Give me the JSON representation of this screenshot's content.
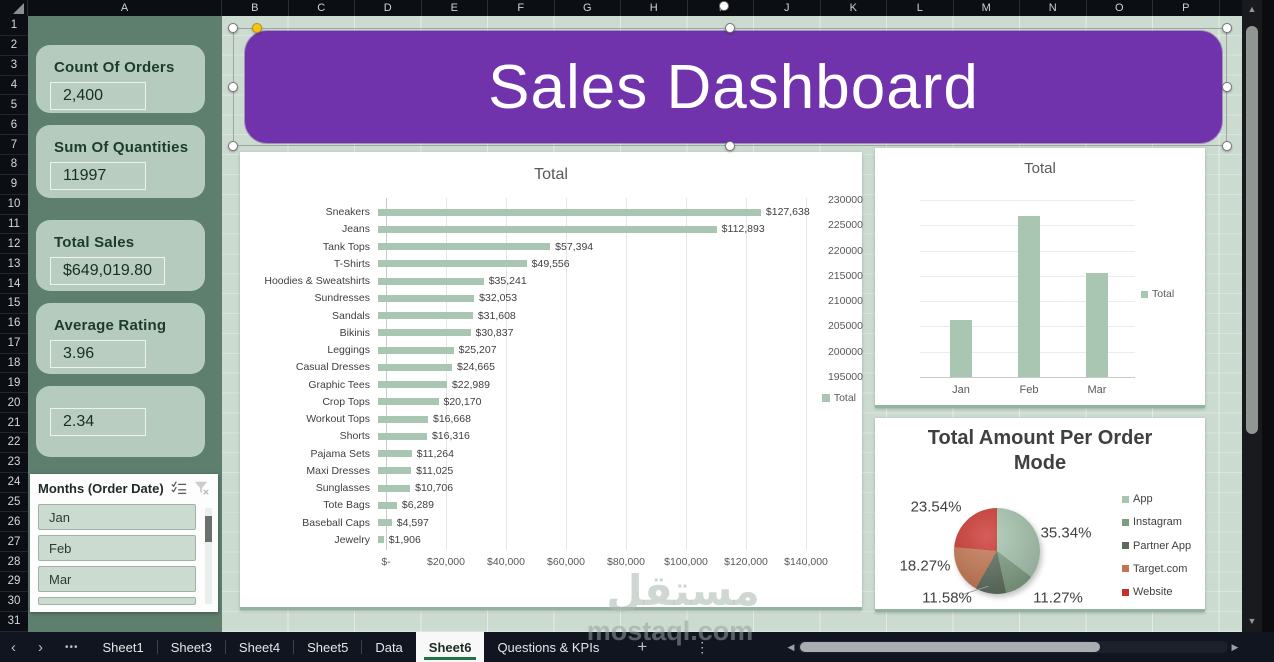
{
  "grid": {
    "columns": [
      "A",
      "B",
      "C",
      "D",
      "E",
      "F",
      "G",
      "H",
      "I",
      "J",
      "K",
      "L",
      "M",
      "N",
      "O",
      "P"
    ],
    "rows": [
      "1",
      "2",
      "3",
      "4",
      "5",
      "6",
      "7",
      "8",
      "9",
      "10",
      "11",
      "12",
      "13",
      "14",
      "15",
      "16",
      "17",
      "18",
      "19",
      "20",
      "21",
      "22",
      "23",
      "24",
      "25",
      "26",
      "27",
      "28",
      "29",
      "30",
      "31"
    ]
  },
  "banner": {
    "title": "Sales Dashboard",
    "fill": "#7133ab"
  },
  "sidebar": {
    "cards": [
      {
        "label": "Count Of Orders",
        "value": "2,400"
      },
      {
        "label": "Sum Of Quantities",
        "value": "11997"
      },
      {
        "label": "Total Sales",
        "value": "$649,019.80"
      },
      {
        "label": "Average Rating",
        "value": "3.96"
      },
      {
        "label": "",
        "value": "2.34"
      }
    ]
  },
  "slicer": {
    "title": "Months (Order Date)",
    "items": [
      "Jan",
      "Feb",
      "Mar"
    ],
    "icons": [
      "multi-select-icon",
      "clear-filter-icon"
    ]
  },
  "chart_data": [
    {
      "type": "bar",
      "orientation": "horizontal",
      "title": "Total",
      "legend": [
        "Total"
      ],
      "legend_position": "right",
      "bar_color": "#a9c6b2",
      "categories": [
        "Sneakers",
        "Jeans",
        "Tank Tops",
        "T-Shirts",
        "Hoodies & Sweatshirts",
        "Sundresses",
        "Sandals",
        "Bikinis",
        "Leggings",
        "Casual Dresses",
        "Graphic Tees",
        "Crop Tops",
        "Workout Tops",
        "Shorts",
        "Pajama Sets",
        "Maxi Dresses",
        "Sunglasses",
        "Tote Bags",
        "Baseball Caps",
        "Jewelry"
      ],
      "values": [
        127638,
        112893,
        57394,
        49556,
        35241,
        32053,
        31608,
        30837,
        25207,
        24665,
        22989,
        20170,
        16668,
        16316,
        11264,
        11025,
        10706,
        6289,
        4597,
        1906
      ],
      "value_labels": [
        "$127,638",
        "$112,893",
        "$57,394",
        "$49,556",
        "$35,241",
        "$32,053",
        "$31,608",
        "$30,837",
        "$25,207",
        "$24,665",
        "$22,989",
        "$20,170",
        "$16,668",
        "$16,316",
        "$11,264",
        "$11,025",
        "$10,706",
        "$6,289",
        "$4,597",
        "$1,906"
      ],
      "x_ticks": [
        "$-",
        "$20,000",
        "$40,000",
        "$60,000",
        "$80,000",
        "$100,000",
        "$120,000",
        "$140,000"
      ],
      "xlim": [
        0,
        140000
      ],
      "grid": true
    },
    {
      "type": "bar",
      "orientation": "vertical",
      "title": "Total",
      "legend": [
        "Total"
      ],
      "legend_position": "right",
      "bar_color": "#a9c6b2",
      "categories": [
        "Jan",
        "Feb",
        "Mar"
      ],
      "values": [
        206300,
        226900,
        215600
      ],
      "y_ticks": [
        "230000",
        "225000",
        "220000",
        "215000",
        "210000",
        "205000",
        "200000",
        "195000"
      ],
      "ylim": [
        195000,
        230000
      ],
      "grid": true
    },
    {
      "type": "pie",
      "title": "Total Amount Per Order Mode",
      "title_lines": [
        "Total Amount Per Order",
        "Mode"
      ],
      "categories": [
        "App",
        "Instagram",
        "Partner App",
        "Target.com",
        "Website"
      ],
      "values": [
        35.34,
        11.27,
        11.58,
        18.27,
        23.54
      ],
      "pct_labels": [
        "35.34%",
        "11.27%",
        "11.58%",
        "18.27%",
        "23.54%"
      ],
      "colors": [
        "#a6c4ae",
        "#7d9c82",
        "#5a6b5c",
        "#c2744f",
        "#c9302b"
      ],
      "legend_position": "right"
    }
  ],
  "tabbar": {
    "nav": {
      "prev": "‹",
      "next": "›",
      "ellipsis": "•••",
      "add": "+",
      "more": "⋮"
    },
    "tabs": [
      {
        "label": "Sheet1",
        "active": false
      },
      {
        "label": "Sheet3",
        "active": false
      },
      {
        "label": "Sheet4",
        "active": false
      },
      {
        "label": "Sheet5",
        "active": false
      },
      {
        "label": "Data",
        "active": false
      },
      {
        "label": "Sheet6",
        "active": true
      },
      {
        "label": "Questions & KPIs",
        "active": false
      }
    ],
    "scroll": {
      "left_arrow": "◀",
      "right_arrow": "▶"
    }
  },
  "watermark": {
    "arabic": "مستقل",
    "domain": "mostaql.com"
  }
}
